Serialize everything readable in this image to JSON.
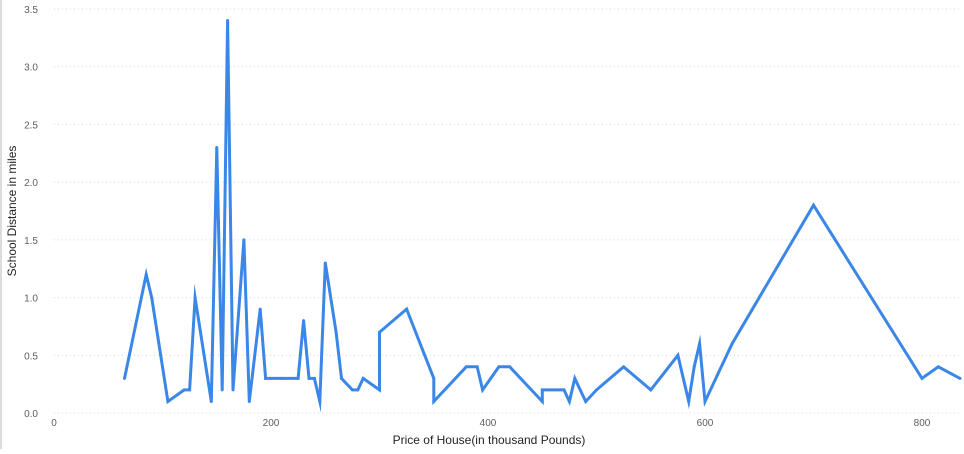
{
  "chart_data": {
    "type": "line",
    "title": "",
    "xlabel": "Price of House(in thousand Pounds)",
    "ylabel": "School Distance in miles",
    "xlim": [
      0,
      835
    ],
    "ylim": [
      0,
      3.5
    ],
    "grid": true,
    "x_ticks": [
      0,
      200,
      400,
      600,
      800
    ],
    "x_tick_labels": [
      "0",
      "200",
      "400",
      "600",
      "800"
    ],
    "y_ticks": [
      0,
      0.5,
      1.0,
      1.5,
      2.0,
      2.5,
      3.0,
      3.5
    ],
    "y_tick_labels": [
      "0.0",
      "0.5",
      "1.0",
      "1.5",
      "2.0",
      "2.5",
      "3.0",
      "3.5"
    ],
    "series_color": "#3a87e8",
    "series": [
      {
        "x": [
          65,
          85,
          90,
          105,
          120,
          125,
          130,
          145,
          150,
          155,
          160,
          165,
          175,
          180,
          190,
          195,
          200,
          210,
          225,
          230,
          235,
          240,
          245,
          250,
          260,
          265,
          275,
          280,
          285,
          300,
          300,
          325,
          350,
          350,
          380,
          390,
          395,
          410,
          420,
          450,
          450,
          470,
          475,
          480,
          485,
          490,
          500,
          525,
          550,
          575,
          585,
          590,
          595,
          600,
          625,
          700,
          800,
          815,
          835
        ],
        "y": [
          0.3,
          1.2,
          1.0,
          0.1,
          0.2,
          0.2,
          1.0,
          0.1,
          2.3,
          0.2,
          3.4,
          0.2,
          1.5,
          0.1,
          0.9,
          0.3,
          0.3,
          0.3,
          0.3,
          0.8,
          0.3,
          0.3,
          0.1,
          1.3,
          0.7,
          0.3,
          0.2,
          0.2,
          0.3,
          0.2,
          0.7,
          0.9,
          0.3,
          0.1,
          0.4,
          0.4,
          0.2,
          0.4,
          0.4,
          0.1,
          0.2,
          0.2,
          0.1,
          0.3,
          0.2,
          0.1,
          0.2,
          0.4,
          0.2,
          0.5,
          0.1,
          0.4,
          0.6,
          0.1,
          0.6,
          1.8,
          0.3,
          0.4,
          0.3
        ]
      }
    ]
  }
}
